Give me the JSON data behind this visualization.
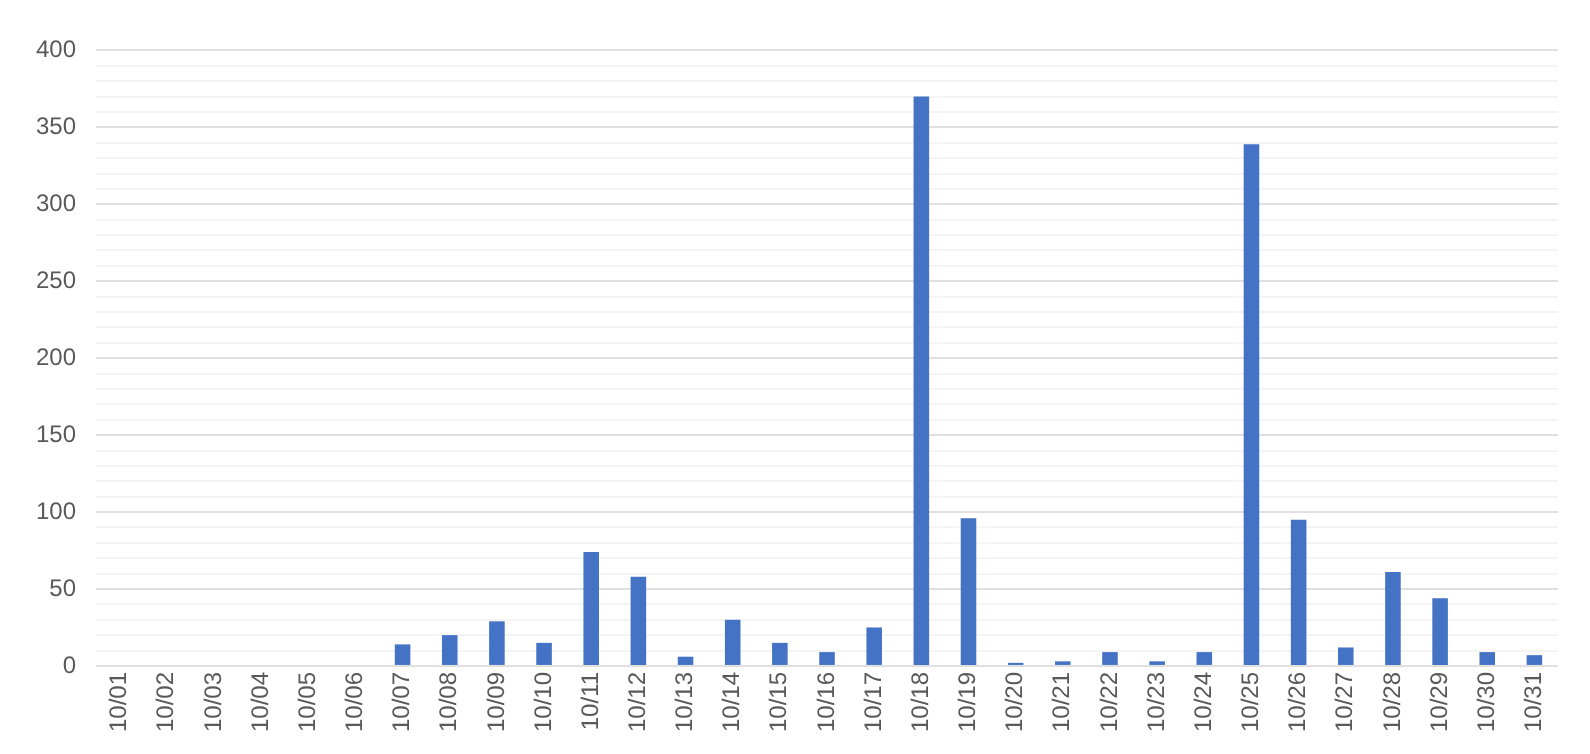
{
  "chart_data": {
    "type": "bar",
    "categories": [
      "10/01",
      "10/02",
      "10/03",
      "10/04",
      "10/05",
      "10/06",
      "10/07",
      "10/08",
      "10/09",
      "10/10",
      "10/11",
      "10/12",
      "10/13",
      "10/14",
      "10/15",
      "10/16",
      "10/17",
      "10/18",
      "10/19",
      "10/20",
      "10/21",
      "10/22",
      "10/23",
      "10/24",
      "10/25",
      "10/26",
      "10/27",
      "10/28",
      "10/29",
      "10/30",
      "10/31"
    ],
    "values": [
      0,
      0,
      0,
      0,
      0,
      0,
      14,
      20,
      29,
      15,
      74,
      58,
      6,
      30,
      15,
      9,
      25,
      370,
      96,
      2,
      3,
      9,
      3,
      9,
      339,
      95,
      12,
      61,
      44,
      9,
      7
    ],
    "color": "#4472c4",
    "ylim": [
      0,
      400
    ],
    "yticks": [
      0,
      {
        "value": 10,
        "label": null
      },
      {
        "value": 20,
        "label": null
      },
      {
        "value": 30,
        "label": null
      },
      {
        "value": 40,
        "label": null
      },
      50,
      {
        "value": 60,
        "label": null
      },
      {
        "value": 70,
        "label": null
      },
      {
        "value": 80,
        "label": null
      },
      {
        "value": 90,
        "label": null
      },
      100,
      {
        "value": 110,
        "label": null
      },
      {
        "value": 120,
        "label": null
      },
      {
        "value": 130,
        "label": null
      },
      {
        "value": 140,
        "label": null
      },
      150,
      {
        "value": 160,
        "label": null
      },
      {
        "value": 170,
        "label": null
      },
      {
        "value": 180,
        "label": null
      },
      {
        "value": 190,
        "label": null
      },
      200,
      {
        "value": 210,
        "label": null
      },
      {
        "value": 220,
        "label": null
      },
      {
        "value": 230,
        "label": null
      },
      {
        "value": 240,
        "label": null
      },
      250,
      {
        "value": 260,
        "label": null
      },
      {
        "value": 270,
        "label": null
      },
      {
        "value": 280,
        "label": null
      },
      {
        "value": 290,
        "label": null
      },
      300,
      {
        "value": 310,
        "label": null
      },
      {
        "value": 320,
        "label": null
      },
      {
        "value": 330,
        "label": null
      },
      {
        "value": 340,
        "label": null
      },
      350,
      {
        "value": 360,
        "label": null
      },
      {
        "value": 370,
        "label": null
      },
      {
        "value": 380,
        "label": null
      },
      {
        "value": 390,
        "label": null
      },
      400
    ],
    "grid": "y",
    "legend": false
  }
}
